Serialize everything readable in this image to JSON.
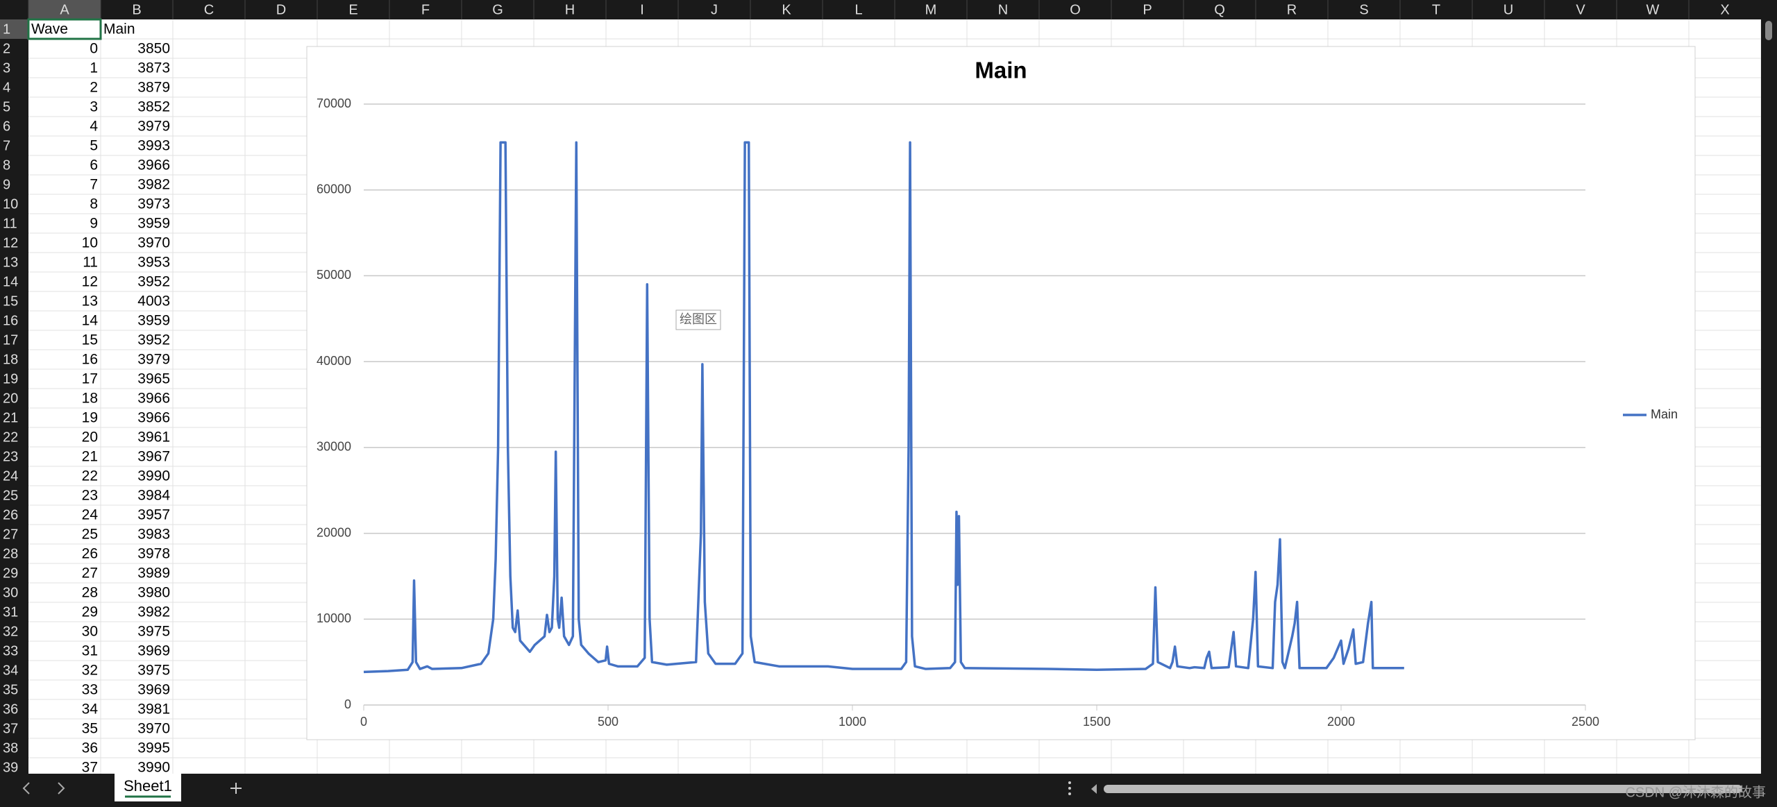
{
  "columns": [
    "A",
    "B",
    "C",
    "D",
    "E",
    "F",
    "G",
    "H",
    "I",
    "J",
    "K",
    "L",
    "M",
    "N",
    "O",
    "P",
    "Q",
    "R",
    "S",
    "T",
    "U",
    "V",
    "W",
    "X"
  ],
  "row_numbers": [
    1,
    2,
    3,
    4,
    5,
    6,
    7,
    8,
    9,
    10,
    11,
    12,
    13,
    14,
    15,
    16,
    17,
    18,
    19,
    20,
    21,
    22,
    23,
    24,
    25,
    26,
    27,
    28,
    29,
    30,
    31,
    32,
    33,
    34,
    35,
    36,
    37,
    38,
    39
  ],
  "sheet": {
    "header": [
      "Wave",
      "Main"
    ],
    "rows": [
      [
        0,
        3850
      ],
      [
        1,
        3873
      ],
      [
        2,
        3879
      ],
      [
        3,
        3852
      ],
      [
        4,
        3979
      ],
      [
        5,
        3993
      ],
      [
        6,
        3966
      ],
      [
        7,
        3982
      ],
      [
        8,
        3973
      ],
      [
        9,
        3959
      ],
      [
        10,
        3970
      ],
      [
        11,
        3953
      ],
      [
        12,
        3952
      ],
      [
        13,
        4003
      ],
      [
        14,
        3959
      ],
      [
        15,
        3952
      ],
      [
        16,
        3979
      ],
      [
        17,
        3965
      ],
      [
        18,
        3966
      ],
      [
        19,
        3966
      ],
      [
        20,
        3961
      ],
      [
        21,
        3967
      ],
      [
        22,
        3990
      ],
      [
        23,
        3984
      ],
      [
        24,
        3957
      ],
      [
        25,
        3983
      ],
      [
        26,
        3978
      ],
      [
        27,
        3989
      ],
      [
        28,
        3980
      ],
      [
        29,
        3982
      ],
      [
        30,
        3975
      ],
      [
        31,
        3969
      ],
      [
        32,
        3975
      ],
      [
        33,
        3969
      ],
      [
        34,
        3981
      ],
      [
        35,
        3970
      ],
      [
        36,
        3995
      ],
      [
        37,
        3990
      ]
    ]
  },
  "chart_data": {
    "type": "line",
    "title": "Main",
    "x": [
      0,
      50,
      90,
      100,
      103,
      107,
      115,
      130,
      140,
      200,
      240,
      255,
      265,
      270,
      275,
      280,
      290,
      295,
      300,
      305,
      310,
      315,
      320,
      340,
      350,
      370,
      375,
      380,
      385,
      390,
      393,
      397,
      400,
      405,
      410,
      420,
      428,
      435,
      440,
      445,
      460,
      480,
      495,
      498,
      502,
      520,
      560,
      575,
      580,
      585,
      590,
      620,
      680,
      690,
      693,
      698,
      705,
      720,
      760,
      775,
      780,
      788,
      792,
      800,
      850,
      950,
      1000,
      1100,
      1110,
      1115,
      1118,
      1122,
      1128,
      1150,
      1200,
      1210,
      1213,
      1215,
      1218,
      1222,
      1230,
      1400,
      1500,
      1600,
      1615,
      1620,
      1625,
      1650,
      1655,
      1660,
      1665,
      1690,
      1700,
      1720,
      1725,
      1730,
      1735,
      1770,
      1775,
      1780,
      1785,
      1810,
      1820,
      1825,
      1830,
      1860,
      1865,
      1870,
      1875,
      1880,
      1885,
      1900,
      1905,
      1910,
      1915,
      1970,
      1985,
      2000,
      2005,
      2015,
      2025,
      2030,
      2045,
      2055,
      2062,
      2065,
      2100,
      2129
    ],
    "series": [
      {
        "name": "Main",
        "color": "#4472c4",
        "values": [
          3850,
          3950,
          4100,
          5000,
          14500,
          5000,
          4200,
          4500,
          4200,
          4300,
          4800,
          6000,
          10000,
          17000,
          30000,
          65535,
          65535,
          30000,
          15000,
          9000,
          8500,
          11000,
          7500,
          6200,
          7000,
          8000,
          10500,
          8500,
          9000,
          15000,
          29500,
          10000,
          9000,
          12500,
          8000,
          7000,
          8000,
          65535,
          10000,
          7000,
          6000,
          5000,
          5200,
          6800,
          4800,
          4500,
          4500,
          5500,
          49000,
          10000,
          5000,
          4700,
          5000,
          20000,
          39700,
          12000,
          6000,
          4800,
          4800,
          6000,
          65535,
          65535,
          8000,
          5000,
          4500,
          4500,
          4200,
          4200,
          5000,
          30000,
          65535,
          8000,
          4500,
          4200,
          4300,
          5000,
          22500,
          14000,
          22000,
          5000,
          4300,
          4200,
          4100,
          4200,
          4800,
          13700,
          5000,
          4300,
          5000,
          6800,
          4500,
          4300,
          4400,
          4300,
          5500,
          6200,
          4300,
          4400,
          6500,
          8500,
          4500,
          4300,
          10000,
          15500,
          4500,
          4300,
          12000,
          14000,
          19300,
          5000,
          4300,
          8000,
          9500,
          12000,
          4300,
          4300,
          5500,
          7500,
          4800,
          6500,
          8800,
          4800,
          5000,
          9500,
          12000,
          4300,
          4300,
          4300
        ]
      }
    ],
    "xlim": [
      0,
      2500
    ],
    "xticks": [
      0,
      500,
      1000,
      1500,
      2000,
      2500
    ],
    "ylim": [
      0,
      70000
    ],
    "yticks": [
      0,
      10000,
      20000,
      30000,
      40000,
      50000,
      60000,
      70000
    ],
    "grid": true,
    "legend": "right"
  },
  "tooltip": "绘图区",
  "sheet_tab": "Sheet1",
  "watermark": "CSDN @沐沐森的故事"
}
